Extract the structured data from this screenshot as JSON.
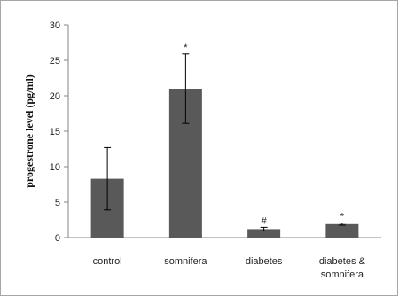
{
  "chart_data": {
    "type": "bar",
    "title": "",
    "xlabel": "",
    "ylabel": "progestrone level (pg/ml)",
    "ylim": [
      0,
      30
    ],
    "yticks": [
      "0",
      "5",
      "10",
      "15",
      "20",
      "25",
      "30"
    ],
    "categories": [
      [
        "control"
      ],
      [
        "somnifera"
      ],
      [
        "diabetes"
      ],
      [
        "diabetes &",
        "somnifera"
      ]
    ],
    "values": [
      8.3,
      21.0,
      1.2,
      1.9
    ],
    "errors": [
      4.4,
      4.9,
      0.25,
      0.15
    ],
    "annotations": [
      "",
      "*",
      "#",
      "*"
    ],
    "grid": false,
    "legend": "none",
    "bar_color": "#595959",
    "axis_color": "#868686",
    "frame_color": "#a6a6a6"
  }
}
